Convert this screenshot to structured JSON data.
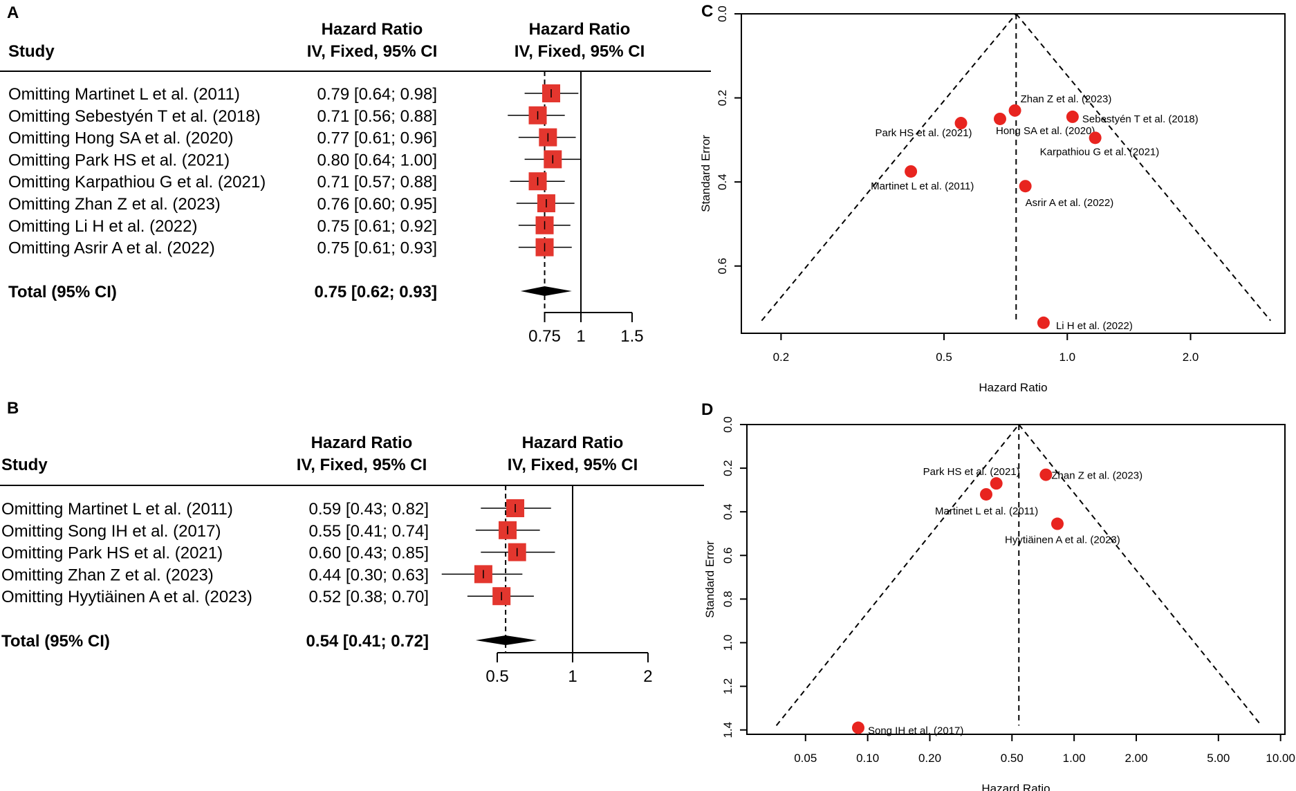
{
  "chart_data": [
    {
      "panel": "A",
      "type": "forest",
      "col_study": "Study",
      "col_hr1": "Hazard Ratio",
      "col_hr2": "IV, Fixed, 95% CI",
      "col_plot1": "Hazard Ratio",
      "col_plot2": "IV, Fixed, 95% CI",
      "scale": "log",
      "ticks": [
        {
          "v": 0.75,
          "label": "0.75"
        },
        {
          "v": 1,
          "label": "1"
        },
        {
          "v": 1.5,
          "label": "1.5"
        }
      ],
      "reference_line": 1,
      "rows": [
        {
          "study": "Omitting Martinet L et al. (2011)",
          "ci_text": "0.79 [0.64; 0.98]",
          "hr": 0.79,
          "lo": 0.64,
          "hi": 0.98
        },
        {
          "study": "Omitting Sebestyén T et al. (2018)",
          "ci_text": "0.71 [0.56; 0.88]",
          "hr": 0.71,
          "lo": 0.56,
          "hi": 0.88
        },
        {
          "study": "Omitting Hong SA et al. (2020)",
          "ci_text": "0.77 [0.61; 0.96]",
          "hr": 0.77,
          "lo": 0.61,
          "hi": 0.96
        },
        {
          "study": "Omitting Park HS et al. (2021)",
          "ci_text": "0.80 [0.64; 1.00]",
          "hr": 0.8,
          "lo": 0.64,
          "hi": 1.0
        },
        {
          "study": "Omitting Karpathiou G et al. (2021)",
          "ci_text": "0.71 [0.57; 0.88]",
          "hr": 0.71,
          "lo": 0.57,
          "hi": 0.88
        },
        {
          "study": "Omitting Zhan Z et al. (2023)",
          "ci_text": "0.76 [0.60; 0.95]",
          "hr": 0.76,
          "lo": 0.6,
          "hi": 0.95
        },
        {
          "study": "Omitting Li H et al. (2022)",
          "ci_text": "0.75 [0.61; 0.92]",
          "hr": 0.75,
          "lo": 0.61,
          "hi": 0.92
        },
        {
          "study": "Omitting Asrir A et al. (2022)",
          "ci_text": "0.75 [0.61; 0.93]",
          "hr": 0.75,
          "lo": 0.61,
          "hi": 0.93
        }
      ],
      "total": {
        "label": "Total (95% CI)",
        "ci_text": "0.75 [0.62; 0.93]",
        "hr": 0.75,
        "lo": 0.62,
        "hi": 0.93
      }
    },
    {
      "panel": "B",
      "type": "forest",
      "col_study": "Study",
      "col_hr1": "Hazard Ratio",
      "col_hr2": "IV, Fixed, 95% CI",
      "col_plot1": "Hazard Ratio",
      "col_plot2": "IV, Fixed, 95% CI",
      "scale": "log",
      "ticks": [
        {
          "v": 0.5,
          "label": "0.5"
        },
        {
          "v": 1,
          "label": "1"
        },
        {
          "v": 2,
          "label": "2"
        }
      ],
      "reference_line": 1,
      "rows": [
        {
          "study": "Omitting Martinet L et al. (2011)",
          "ci_text": "0.59 [0.43; 0.82]",
          "hr": 0.59,
          "lo": 0.43,
          "hi": 0.82
        },
        {
          "study": "Omitting Song IH et al. (2017)",
          "ci_text": "0.55 [0.41; 0.74]",
          "hr": 0.55,
          "lo": 0.41,
          "hi": 0.74
        },
        {
          "study": "Omitting Park HS et al. (2021)",
          "ci_text": "0.60 [0.43; 0.85]",
          "hr": 0.6,
          "lo": 0.43,
          "hi": 0.85
        },
        {
          "study": "Omitting Zhan Z et al. (2023)",
          "ci_text": "0.44 [0.30; 0.63]",
          "hr": 0.44,
          "lo": 0.3,
          "hi": 0.63
        },
        {
          "study": "Omitting Hyytiäinen A et al. (2023)",
          "ci_text": "0.52 [0.38; 0.70]",
          "hr": 0.52,
          "lo": 0.38,
          "hi": 0.7
        }
      ],
      "total": {
        "label": "Total (95% CI)",
        "ci_text": "0.54 [0.41; 0.72]",
        "hr": 0.54,
        "lo": 0.41,
        "hi": 0.72
      }
    },
    {
      "panel": "C",
      "type": "scatter",
      "subtype": "funnel",
      "xlabel": "Hazard Ratio",
      "ylabel": "Standard Error",
      "x_scale": "log",
      "xlim": [
        0.16,
        3.4
      ],
      "ylim": [
        0,
        0.76
      ],
      "x_ticks": [
        {
          "v": 0.2,
          "label": "0.2"
        },
        {
          "v": 0.5,
          "label": "0.5"
        },
        {
          "v": 1.0,
          "label": "1.0"
        },
        {
          "v": 2.0,
          "label": "2.0"
        }
      ],
      "y_ticks": [
        {
          "v": 0.0,
          "label": "0.0"
        },
        {
          "v": 0.2,
          "label": "0.2"
        },
        {
          "v": 0.4,
          "label": "0.4"
        },
        {
          "v": 0.6,
          "label": "0.6"
        }
      ],
      "pooled_estimate": 0.75,
      "funnel_bottom_se": 0.73,
      "points": [
        {
          "label": "Zhan Z et al. (2023)",
          "x": 0.745,
          "y": 0.23
        },
        {
          "label": "Sebestyén T et al. (2018)",
          "x": 1.03,
          "y": 0.245
        },
        {
          "label": "Hong SA et al. (2020)",
          "x": 0.685,
          "y": 0.25
        },
        {
          "label": "Park HS et al. (2021)",
          "x": 0.55,
          "y": 0.26
        },
        {
          "label": "Karpathiou G et al. (2021)",
          "x": 1.17,
          "y": 0.295
        },
        {
          "label": "Martinet L et al. (2011)",
          "x": 0.415,
          "y": 0.375
        },
        {
          "label": "Asrir A et al. (2022)",
          "x": 0.79,
          "y": 0.41
        },
        {
          "label": "Li H et al. (2022)",
          "x": 0.875,
          "y": 0.735
        }
      ]
    },
    {
      "panel": "D",
      "type": "scatter",
      "subtype": "funnel",
      "xlabel": "Hazard Ratio",
      "ylabel": "Standard Error",
      "x_scale": "log",
      "xlim": [
        0.026,
        10.5
      ],
      "ylim": [
        0,
        1.42
      ],
      "x_ticks": [
        {
          "v": 0.05,
          "label": "0.05"
        },
        {
          "v": 0.1,
          "label": "0.10"
        },
        {
          "v": 0.2,
          "label": "0.20"
        },
        {
          "v": 0.5,
          "label": "0.50"
        },
        {
          "v": 1.0,
          "label": "1.00"
        },
        {
          "v": 2.0,
          "label": "2.00"
        },
        {
          "v": 5.0,
          "label": "5.00"
        },
        {
          "v": 10.0,
          "label": "10.00"
        }
      ],
      "y_ticks": [
        {
          "v": 0.0,
          "label": "0.0"
        },
        {
          "v": 0.2,
          "label": "0.2"
        },
        {
          "v": 0.4,
          "label": "0.4"
        },
        {
          "v": 0.6,
          "label": "0.6"
        },
        {
          "v": 0.8,
          "label": "0.8"
        },
        {
          "v": 1.0,
          "label": "1.0"
        },
        {
          "v": 1.2,
          "label": "1.2"
        },
        {
          "v": 1.4,
          "label": "1.4"
        }
      ],
      "pooled_estimate": 0.54,
      "funnel_bottom_se": 1.38,
      "points": [
        {
          "label": "Park HS et al. (2021)",
          "x": 0.42,
          "y": 0.27
        },
        {
          "label": "Zhan Z et al. (2023)",
          "x": 0.73,
          "y": 0.23
        },
        {
          "label": "Martinet L et al. (2011)",
          "x": 0.375,
          "y": 0.32
        },
        {
          "label": "Hyytiäinen A et al. (2023)",
          "x": 0.83,
          "y": 0.455
        },
        {
          "label": "Song IH et al. (2017)",
          "x": 0.09,
          "y": 1.39
        }
      ]
    }
  ],
  "panel_labels": {
    "a": "A",
    "b": "B",
    "c": "C",
    "d": "D"
  },
  "colors": {
    "marker": "#e8241f",
    "square": "#e3362e",
    "line": "#000000"
  }
}
